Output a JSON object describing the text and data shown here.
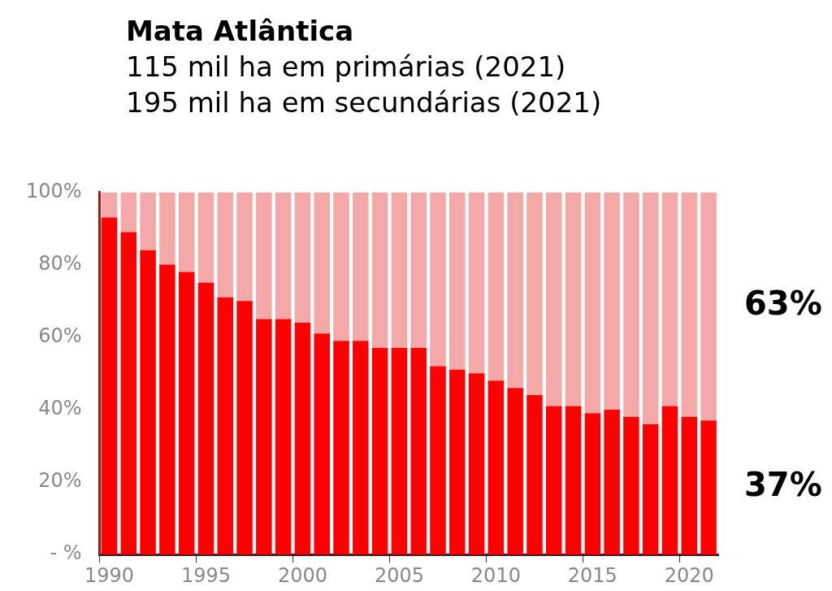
{
  "chart_data": {
    "type": "bar",
    "title": "Mata Atlântica",
    "subtitle": [
      "115 mil ha em primárias (2021)",
      "195 mil ha em secundárias (2021)"
    ],
    "categories": [
      "1990",
      null,
      null,
      null,
      null,
      "1995",
      null,
      null,
      null,
      null,
      "2000",
      null,
      null,
      null,
      null,
      "2005",
      null,
      null,
      null,
      null,
      "2010",
      null,
      null,
      null,
      null,
      "2015",
      null,
      null,
      null,
      null,
      "2020",
      null
    ],
    "stacked": true,
    "series": [
      {
        "color": "#ff0000",
        "values": [
          93,
          89,
          84,
          80,
          78,
          75,
          71,
          70,
          65,
          65,
          64,
          61,
          59,
          59,
          57,
          57,
          57,
          52,
          51,
          50,
          48,
          46,
          44,
          41,
          41,
          39,
          40,
          38,
          36,
          41,
          38,
          37
        ]
      },
      {
        "color": "#f4a8a8",
        "values": [
          7,
          11,
          16,
          20,
          22,
          25,
          29,
          30,
          35,
          35,
          36,
          39,
          41,
          41,
          43,
          43,
          43,
          48,
          49,
          50,
          52,
          54,
          56,
          59,
          59,
          61,
          60,
          62,
          64,
          59,
          62,
          63
        ]
      }
    ],
    "ylim": [
      0,
      100
    ],
    "yticks": [
      {
        "value": 0,
        "label": "- %"
      },
      {
        "value": 20,
        "label": "20%"
      },
      {
        "value": 40,
        "label": "40%"
      },
      {
        "value": 60,
        "label": "60%"
      },
      {
        "value": 80,
        "label": "80%"
      },
      {
        "value": 100,
        "label": "100%"
      }
    ],
    "grid": false,
    "legend": false,
    "annotations": [
      "63%",
      "37%"
    ]
  }
}
